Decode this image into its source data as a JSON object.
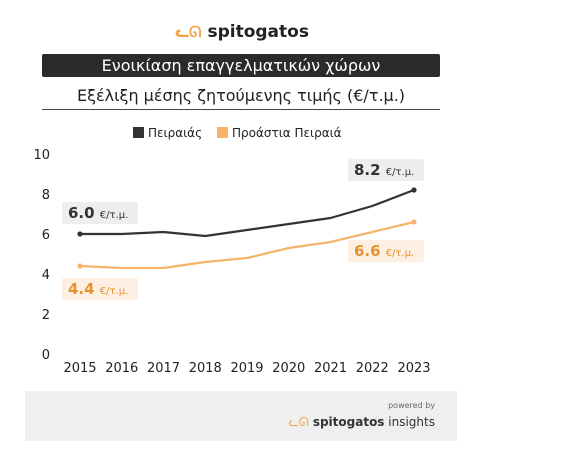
{
  "brand": {
    "name": "spitogatos",
    "icon": "cat-logo-icon"
  },
  "title": "Ενοικίαση επαγγελματικών χώρων",
  "subtitle": "Εξέλιξη μέσης ζητούμενης τιμής (€/τ.μ.)",
  "footer": {
    "powered": "powered by",
    "brand_bold": "spitogatos",
    "brand_rest": "insights"
  },
  "colors": {
    "piraeus": "#333333",
    "suburbs": "#f5b46a",
    "suburbs_text": "#e5922d"
  },
  "chart_data": {
    "type": "line",
    "x": [
      2015,
      2016,
      2017,
      2018,
      2019,
      2020,
      2021,
      2022,
      2023
    ],
    "ylim": [
      0,
      10
    ],
    "yticks": [
      0,
      2,
      4,
      6,
      8,
      10
    ],
    "grid": false,
    "legend_position": "top-center",
    "series": [
      {
        "name": "Πειραιάς",
        "values": [
          6.0,
          6.0,
          6.1,
          5.9,
          6.2,
          6.5,
          6.8,
          7.4,
          8.2
        ]
      },
      {
        "name": "Προάστια Πειραιά",
        "values": [
          4.4,
          4.3,
          4.3,
          4.6,
          4.8,
          5.3,
          5.6,
          6.1,
          6.6
        ]
      }
    ],
    "annotations": [
      {
        "series": 0,
        "index": 0,
        "value": "6.0",
        "unit": "€/τ.μ."
      },
      {
        "series": 0,
        "index": 8,
        "value": "8.2",
        "unit": "€/τ.μ."
      },
      {
        "series": 1,
        "index": 0,
        "value": "4.4",
        "unit": "€/τ.μ."
      },
      {
        "series": 1,
        "index": 8,
        "value": "6.6",
        "unit": "€/τ.μ."
      }
    ]
  }
}
